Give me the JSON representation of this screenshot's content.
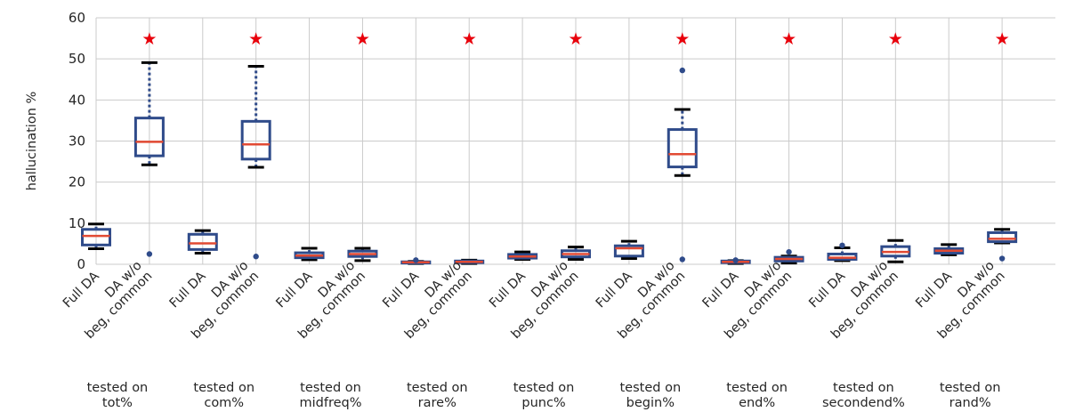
{
  "chart_data": {
    "type": "box",
    "ylabel": "hallucination %",
    "ylim": [
      0,
      60
    ],
    "yticks": [
      0,
      10,
      20,
      30,
      40,
      50,
      60
    ],
    "grid": true,
    "box_color": "#2f4b8a",
    "median_color": "#e24a33",
    "marker_color": "#e8000b",
    "marker_symbol": "★",
    "marker_y": 55,
    "groups": [
      {
        "line1": "tested on",
        "line2": "tot%",
        "boxes": [
          {
            "label": "Full DA",
            "whisker_low": 3.8,
            "q1": 4.7,
            "median": 6.9,
            "q3": 8.5,
            "whisker_high": 9.8,
            "outliers": []
          },
          {
            "label": [
              "DA w/o",
              "beg, common"
            ],
            "whisker_low": 24.2,
            "q1": 26.4,
            "median": 29.8,
            "q3": 35.6,
            "whisker_high": 49.1,
            "outliers": [
              2.5
            ]
          }
        ]
      },
      {
        "line1": "tested on",
        "line2": "com%",
        "boxes": [
          {
            "label": "Full DA",
            "whisker_low": 2.7,
            "q1": 3.6,
            "median": 5.1,
            "q3": 7.3,
            "whisker_high": 8.2,
            "outliers": []
          },
          {
            "label": [
              "DA w/o",
              "beg, common"
            ],
            "whisker_low": 23.6,
            "q1": 25.6,
            "median": 29.2,
            "q3": 34.8,
            "whisker_high": 48.2,
            "outliers": [
              1.9
            ]
          }
        ]
      },
      {
        "line1": "tested on",
        "line2": "midfreq%",
        "boxes": [
          {
            "label": "Full DA",
            "whisker_low": 1.1,
            "q1": 1.6,
            "median": 2.1,
            "q3": 2.8,
            "whisker_high": 3.9,
            "outliers": []
          },
          {
            "label": [
              "DA w/o",
              "beg, common"
            ],
            "whisker_low": 0.9,
            "q1": 1.9,
            "median": 2.5,
            "q3": 3.2,
            "whisker_high": 3.9,
            "outliers": []
          }
        ]
      },
      {
        "line1": "tested on",
        "line2": "rare%",
        "boxes": [
          {
            "label": "Full DA",
            "whisker_low": 0.2,
            "q1": 0.3,
            "median": 0.5,
            "q3": 0.6,
            "whisker_high": 0.7,
            "outliers": [
              1.0
            ]
          },
          {
            "label": [
              "DA w/o",
              "beg, common"
            ],
            "whisker_low": 0.2,
            "q1": 0.4,
            "median": 0.6,
            "q3": 0.8,
            "whisker_high": 1.0,
            "outliers": []
          }
        ]
      },
      {
        "line1": "tested on",
        "line2": "punc%",
        "boxes": [
          {
            "label": "Full DA",
            "whisker_low": 1.2,
            "q1": 1.5,
            "median": 1.9,
            "q3": 2.4,
            "whisker_high": 3.0,
            "outliers": []
          },
          {
            "label": [
              "DA w/o",
              "beg, common"
            ],
            "whisker_low": 1.2,
            "q1": 1.8,
            "median": 2.5,
            "q3": 3.3,
            "whisker_high": 4.2,
            "outliers": []
          }
        ]
      },
      {
        "line1": "tested on",
        "line2": "begin%",
        "boxes": [
          {
            "label": "Full DA",
            "whisker_low": 1.4,
            "q1": 2.0,
            "median": 3.9,
            "q3": 4.5,
            "whisker_high": 5.6,
            "outliers": []
          },
          {
            "label": [
              "DA w/o",
              "beg, common"
            ],
            "whisker_low": 21.6,
            "q1": 23.7,
            "median": 26.8,
            "q3": 32.8,
            "whisker_high": 37.7,
            "outliers": [
              47.2,
              1.2
            ]
          }
        ]
      },
      {
        "line1": "tested on",
        "line2": "end%",
        "boxes": [
          {
            "label": "Full DA",
            "whisker_low": 0.2,
            "q1": 0.4,
            "median": 0.6,
            "q3": 0.8,
            "whisker_high": 0.9,
            "outliers": [
              1.0
            ]
          },
          {
            "label": [
              "DA w/o",
              "beg, common"
            ],
            "whisker_low": 0.3,
            "q1": 0.8,
            "median": 1.3,
            "q3": 1.7,
            "whisker_high": 2.0,
            "outliers": [
              3.0
            ]
          }
        ]
      },
      {
        "line1": "tested on",
        "line2": "secondend%",
        "boxes": [
          {
            "label": "Full DA",
            "whisker_low": 0.9,
            "q1": 1.2,
            "median": 1.6,
            "q3": 2.5,
            "whisker_high": 4.0,
            "outliers": [
              4.6
            ]
          },
          {
            "label": [
              "DA w/o",
              "beg, common"
            ],
            "whisker_low": 0.6,
            "q1": 2.0,
            "median": 3.0,
            "q3": 4.3,
            "whisker_high": 5.8,
            "outliers": []
          }
        ]
      },
      {
        "line1": "tested on",
        "line2": "rand%",
        "boxes": [
          {
            "label": "Full DA",
            "whisker_low": 2.3,
            "q1": 2.7,
            "median": 3.3,
            "q3": 3.8,
            "whisker_high": 4.8,
            "outliers": []
          },
          {
            "label": [
              "DA w/o",
              "beg, common"
            ],
            "whisker_low": 5.2,
            "q1": 5.5,
            "median": 6.2,
            "q3": 7.7,
            "whisker_high": 8.5,
            "outliers": [
              1.4
            ]
          }
        ]
      }
    ]
  }
}
